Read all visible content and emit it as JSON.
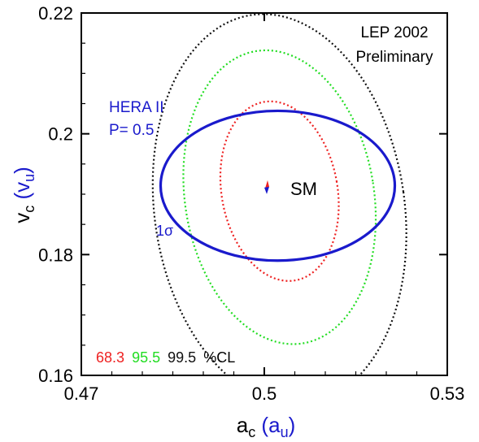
{
  "chart_data": {
    "type": "contour",
    "x_axis": {
      "label_main": "a",
      "label_sub": "c",
      "label_alt_main": "a",
      "label_alt_sub": "u",
      "range": [
        0.47,
        0.53
      ],
      "ticks": [
        0.47,
        0.5,
        0.53
      ],
      "tick_labels": [
        "0.47",
        "0.5",
        "0.53"
      ]
    },
    "y_axis": {
      "label_main": "v",
      "label_sub": "c",
      "label_alt_main": "v",
      "label_alt_sub": "u",
      "range": [
        0.16,
        0.22
      ],
      "ticks": [
        0.16,
        0.18,
        0.2,
        0.22
      ],
      "tick_labels": [
        "0.16",
        "0.18",
        "0.2",
        "0.22"
      ]
    },
    "annotations": {
      "experiment_line1": "LEP 2002",
      "experiment_line2": "Preliminary",
      "projection_line1": "HERA II",
      "projection_line2": "P= 0.5",
      "sigma_label": "1σ",
      "sm_label": "SM",
      "cl_suffix": "%CL"
    },
    "contours": [
      {
        "name": "68.3",
        "color": "#ee2222",
        "style": "dotted",
        "center": [
          0.5025,
          0.1905
        ],
        "semi_axes": [
          0.0095,
          0.015
        ],
        "tilt_deg": -10
      },
      {
        "name": "95.5",
        "color": "#22dd22",
        "style": "dotted",
        "center": [
          0.5025,
          0.1895
        ],
        "semi_axes": [
          0.0155,
          0.0245
        ],
        "tilt_deg": -9
      },
      {
        "name": "99.5",
        "color": "#111111",
        "style": "dotted",
        "center": [
          0.5025,
          0.1875
        ],
        "semi_axes": [
          0.0205,
          0.0325
        ],
        "tilt_deg": -8
      }
    ],
    "projection": {
      "name": "HERA II P= 0.5 1σ",
      "color": "#1a1acc",
      "style": "solid",
      "center": [
        0.5022,
        0.1914
      ],
      "semi_axes": [
        0.0192,
        0.0124
      ]
    },
    "sm_point": {
      "x": 0.5004,
      "y": 0.1911,
      "colors": [
        "#ee2222",
        "#1a1acc"
      ]
    },
    "cl_labels": [
      "68.3",
      "95.5",
      "99.5"
    ],
    "cl_colors": [
      "#ee2222",
      "#22dd22",
      "#111111"
    ]
  }
}
